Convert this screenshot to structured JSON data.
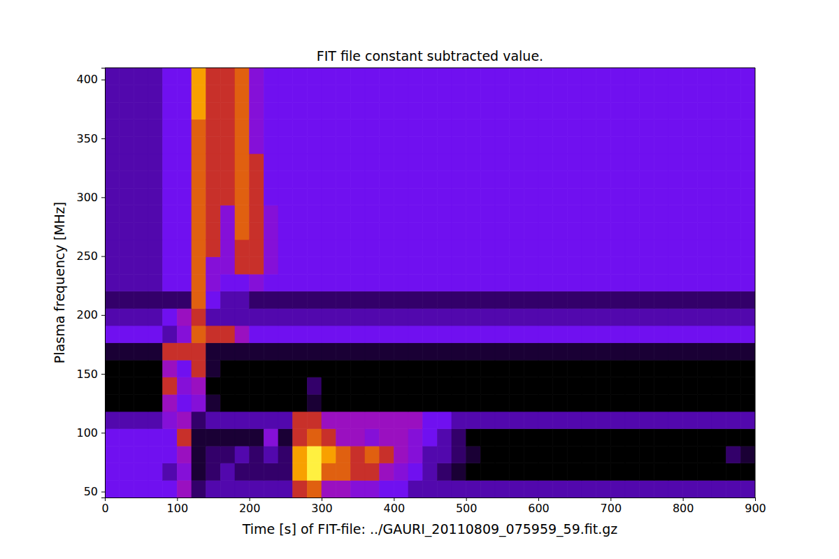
{
  "chart_data": {
    "type": "heatmap",
    "title": "FIT file constant subtracted value.",
    "x_label": "Time [s] of FIT-file: ../GAURI_20110809_075959_59.fit.gz",
    "y_label": "Plasma frequency [MHz]",
    "xlim": [
      0,
      900
    ],
    "ylim": [
      45,
      410
    ],
    "xticks": [
      0,
      100,
      200,
      300,
      400,
      500,
      600,
      700,
      800,
      900
    ],
    "yticks": [
      50,
      100,
      150,
      200,
      250,
      300,
      350,
      400
    ],
    "x_edges": [
      0,
      20,
      40,
      60,
      80,
      100,
      120,
      140,
      160,
      180,
      200,
      220,
      240,
      260,
      280,
      300,
      320,
      340,
      360,
      380,
      400,
      420,
      440,
      460,
      480,
      500,
      520,
      540,
      560,
      580,
      600,
      620,
      640,
      660,
      680,
      700,
      720,
      740,
      760,
      780,
      800,
      820,
      840,
      860,
      880,
      900
    ],
    "y_edges": [
      45,
      59.6,
      74.2,
      88.8,
      103.4,
      118,
      132.6,
      147.2,
      161.8,
      176.4,
      191,
      205.6,
      220.2,
      234.8,
      249.4,
      264,
      278.6,
      293.2,
      307.8,
      322.4,
      337,
      351.6,
      366.2,
      380.8,
      395.4,
      410
    ],
    "cells": [
      [
        4,
        4,
        4,
        4,
        4,
        6,
        2,
        3,
        3,
        3,
        3,
        3,
        3,
        7,
        8,
        6,
        6,
        5,
        5,
        4,
        4,
        3,
        3,
        3,
        3,
        3,
        3,
        3,
        3,
        3,
        3,
        3,
        3,
        3,
        3,
        3,
        3,
        3,
        3,
        3,
        3,
        3,
        3,
        3,
        3
      ],
      [
        4,
        4,
        4,
        4,
        3,
        5,
        1,
        2,
        3,
        2,
        2,
        2,
        2,
        9,
        10,
        8,
        8,
        7,
        7,
        6,
        5,
        4,
        3,
        2,
        1,
        0,
        0,
        0,
        0,
        0,
        0,
        0,
        0,
        0,
        0,
        0,
        0,
        0,
        0,
        0,
        0,
        0,
        0,
        0,
        0
      ],
      [
        4,
        4,
        4,
        4,
        4,
        6,
        1,
        2,
        2,
        3,
        2,
        3,
        2,
        9,
        10,
        9,
        8,
        7,
        8,
        7,
        6,
        5,
        3,
        3,
        2,
        1,
        0,
        0,
        0,
        0,
        0,
        0,
        0,
        0,
        0,
        0,
        0,
        0,
        0,
        0,
        0,
        0,
        0,
        2,
        1
      ],
      [
        4,
        4,
        4,
        4,
        4,
        7,
        1,
        1,
        1,
        1,
        1,
        5,
        1,
        7,
        8,
        7,
        6,
        6,
        5,
        6,
        6,
        5,
        4,
        3,
        2,
        0,
        0,
        0,
        0,
        0,
        0,
        0,
        0,
        0,
        0,
        0,
        0,
        0,
        0,
        0,
        0,
        0,
        0,
        0,
        0
      ],
      [
        3,
        3,
        3,
        3,
        5,
        6,
        2,
        3,
        3,
        3,
        3,
        3,
        3,
        7,
        7,
        6,
        6,
        6,
        6,
        6,
        6,
        6,
        4,
        4,
        3,
        3,
        3,
        3,
        3,
        3,
        3,
        3,
        3,
        3,
        3,
        3,
        3,
        3,
        3,
        3,
        3,
        3,
        3,
        3,
        3
      ],
      [
        0,
        0,
        0,
        0,
        6,
        4,
        5,
        1,
        0,
        0,
        0,
        0,
        0,
        0,
        1,
        0,
        0,
        0,
        0,
        0,
        0,
        0,
        0,
        0,
        0,
        0,
        0,
        0,
        0,
        0,
        0,
        0,
        0,
        0,
        0,
        0,
        0,
        0,
        0,
        0,
        0,
        0,
        0,
        0,
        0
      ],
      [
        0,
        0,
        0,
        0,
        7,
        5,
        6,
        0,
        0,
        0,
        0,
        0,
        0,
        0,
        2,
        0,
        0,
        0,
        0,
        0,
        0,
        0,
        0,
        0,
        0,
        0,
        0,
        0,
        0,
        0,
        0,
        0,
        0,
        0,
        0,
        0,
        0,
        0,
        0,
        0,
        0,
        0,
        0,
        0,
        0
      ],
      [
        0,
        0,
        0,
        0,
        6,
        4,
        7,
        1,
        0,
        0,
        0,
        0,
        0,
        0,
        0,
        0,
        0,
        0,
        0,
        0,
        0,
        0,
        0,
        0,
        0,
        0,
        0,
        0,
        0,
        0,
        0,
        0,
        0,
        0,
        0,
        0,
        0,
        0,
        0,
        0,
        0,
        0,
        0,
        0,
        0
      ],
      [
        1,
        1,
        1,
        1,
        7,
        7,
        7,
        1,
        1,
        1,
        1,
        1,
        1,
        1,
        1,
        1,
        1,
        1,
        1,
        1,
        1,
        1,
        1,
        1,
        1,
        1,
        1,
        1,
        1,
        1,
        1,
        1,
        1,
        1,
        1,
        1,
        1,
        1,
        1,
        1,
        1,
        1,
        1,
        1,
        1
      ],
      [
        4,
        4,
        4,
        4,
        3,
        5,
        8,
        7,
        7,
        6,
        4,
        4,
        4,
        4,
        4,
        4,
        4,
        4,
        4,
        4,
        4,
        4,
        4,
        4,
        4,
        4,
        4,
        4,
        4,
        4,
        4,
        4,
        4,
        4,
        4,
        4,
        4,
        4,
        4,
        4,
        4,
        4,
        4,
        4,
        4
      ],
      [
        3,
        3,
        3,
        3,
        4,
        6,
        7,
        3,
        3,
        3,
        3,
        3,
        3,
        3,
        3,
        3,
        3,
        3,
        3,
        3,
        3,
        3,
        3,
        3,
        3,
        3,
        3,
        3,
        3,
        3,
        3,
        3,
        3,
        3,
        3,
        3,
        3,
        3,
        3,
        3,
        3,
        3,
        3,
        3,
        3
      ],
      [
        2,
        2,
        2,
        2,
        2,
        2,
        8,
        4,
        3,
        3,
        2,
        2,
        2,
        2,
        2,
        2,
        2,
        2,
        2,
        2,
        2,
        2,
        2,
        2,
        2,
        2,
        2,
        2,
        2,
        2,
        2,
        2,
        2,
        2,
        2,
        2,
        2,
        2,
        2,
        2,
        2,
        2,
        2,
        2,
        2
      ],
      [
        3,
        3,
        3,
        3,
        4,
        4,
        8,
        5,
        4,
        4,
        5,
        4,
        4,
        4,
        4,
        4,
        4,
        4,
        4,
        4,
        4,
        4,
        4,
        4,
        4,
        4,
        4,
        4,
        4,
        4,
        4,
        4,
        4,
        4,
        4,
        4,
        4,
        4,
        4,
        4,
        4,
        4,
        4,
        4,
        4
      ],
      [
        3,
        3,
        3,
        3,
        4,
        4,
        8,
        5,
        5,
        7,
        7,
        5,
        4,
        4,
        4,
        4,
        4,
        4,
        4,
        4,
        4,
        4,
        4,
        4,
        4,
        4,
        4,
        4,
        4,
        4,
        4,
        4,
        4,
        4,
        4,
        4,
        4,
        4,
        4,
        4,
        4,
        4,
        4,
        4,
        4
      ],
      [
        3,
        3,
        3,
        3,
        4,
        4,
        8,
        7,
        5,
        7,
        7,
        5,
        4,
        4,
        4,
        4,
        4,
        4,
        4,
        4,
        4,
        4,
        4,
        4,
        4,
        4,
        4,
        4,
        4,
        4,
        4,
        4,
        4,
        4,
        4,
        4,
        4,
        4,
        4,
        4,
        4,
        4,
        4,
        4,
        4
      ],
      [
        3,
        3,
        3,
        3,
        4,
        4,
        8,
        7,
        5,
        8,
        7,
        5,
        4,
        4,
        4,
        4,
        4,
        4,
        4,
        4,
        4,
        4,
        4,
        4,
        4,
        4,
        4,
        4,
        4,
        4,
        4,
        4,
        4,
        4,
        4,
        4,
        4,
        4,
        4,
        4,
        4,
        4,
        4,
        4,
        4
      ],
      [
        3,
        3,
        3,
        3,
        4,
        4,
        8,
        7,
        5,
        8,
        7,
        5,
        4,
        4,
        4,
        4,
        4,
        4,
        4,
        4,
        4,
        4,
        4,
        4,
        4,
        4,
        4,
        4,
        4,
        4,
        4,
        4,
        4,
        4,
        4,
        4,
        4,
        4,
        4,
        4,
        4,
        4,
        4,
        4,
        4
      ],
      [
        3,
        3,
        3,
        3,
        4,
        4,
        8,
        7,
        7,
        8,
        7,
        4,
        4,
        4,
        4,
        4,
        4,
        4,
        4,
        4,
        4,
        4,
        4,
        4,
        4,
        4,
        4,
        4,
        4,
        4,
        4,
        4,
        4,
        4,
        4,
        4,
        4,
        4,
        4,
        4,
        4,
        4,
        4,
        4,
        4
      ],
      [
        3,
        3,
        3,
        3,
        4,
        4,
        8,
        7,
        7,
        8,
        7,
        4,
        4,
        4,
        4,
        4,
        4,
        4,
        4,
        4,
        4,
        4,
        4,
        4,
        4,
        4,
        4,
        4,
        4,
        4,
        4,
        4,
        4,
        4,
        4,
        4,
        4,
        4,
        4,
        4,
        4,
        4,
        4,
        4,
        4
      ],
      [
        3,
        3,
        3,
        3,
        4,
        4,
        8,
        7,
        7,
        8,
        7,
        4,
        4,
        4,
        4,
        4,
        4,
        4,
        4,
        4,
        4,
        4,
        4,
        4,
        4,
        4,
        4,
        4,
        4,
        4,
        4,
        4,
        4,
        4,
        4,
        4,
        4,
        4,
        4,
        4,
        4,
        4,
        4,
        4,
        4
      ],
      [
        3,
        3,
        3,
        3,
        4,
        4,
        8,
        7,
        7,
        8,
        5,
        4,
        4,
        4,
        4,
        4,
        4,
        4,
        4,
        4,
        4,
        4,
        4,
        4,
        4,
        4,
        4,
        4,
        4,
        4,
        4,
        4,
        4,
        4,
        4,
        4,
        4,
        4,
        4,
        4,
        4,
        4,
        4,
        4,
        4
      ],
      [
        3,
        3,
        3,
        3,
        4,
        4,
        8,
        7,
        7,
        8,
        5,
        4,
        4,
        4,
        4,
        4,
        4,
        4,
        4,
        4,
        4,
        4,
        4,
        4,
        4,
        4,
        4,
        4,
        4,
        4,
        4,
        4,
        4,
        4,
        4,
        4,
        4,
        4,
        4,
        4,
        4,
        4,
        4,
        4,
        4
      ],
      [
        3,
        3,
        3,
        3,
        4,
        4,
        9,
        7,
        7,
        8,
        5,
        4,
        4,
        4,
        4,
        4,
        4,
        4,
        4,
        4,
        4,
        4,
        4,
        4,
        4,
        4,
        4,
        4,
        4,
        4,
        4,
        4,
        4,
        4,
        4,
        4,
        4,
        4,
        4,
        4,
        4,
        4,
        4,
        4,
        4
      ],
      [
        3,
        3,
        3,
        3,
        4,
        4,
        9,
        7,
        7,
        8,
        5,
        4,
        4,
        4,
        4,
        4,
        4,
        4,
        4,
        4,
        4,
        4,
        4,
        4,
        4,
        4,
        4,
        4,
        4,
        4,
        4,
        4,
        4,
        4,
        4,
        4,
        4,
        4,
        4,
        4,
        4,
        4,
        4,
        4,
        4
      ],
      [
        3,
        3,
        3,
        3,
        4,
        4,
        9,
        7,
        7,
        8,
        5,
        4,
        4,
        4,
        4,
        4,
        4,
        4,
        4,
        4,
        4,
        4,
        4,
        4,
        4,
        4,
        4,
        4,
        4,
        4,
        4,
        4,
        4,
        4,
        4,
        4,
        4,
        4,
        4,
        4,
        4,
        4,
        4,
        4,
        4
      ]
    ]
  }
}
